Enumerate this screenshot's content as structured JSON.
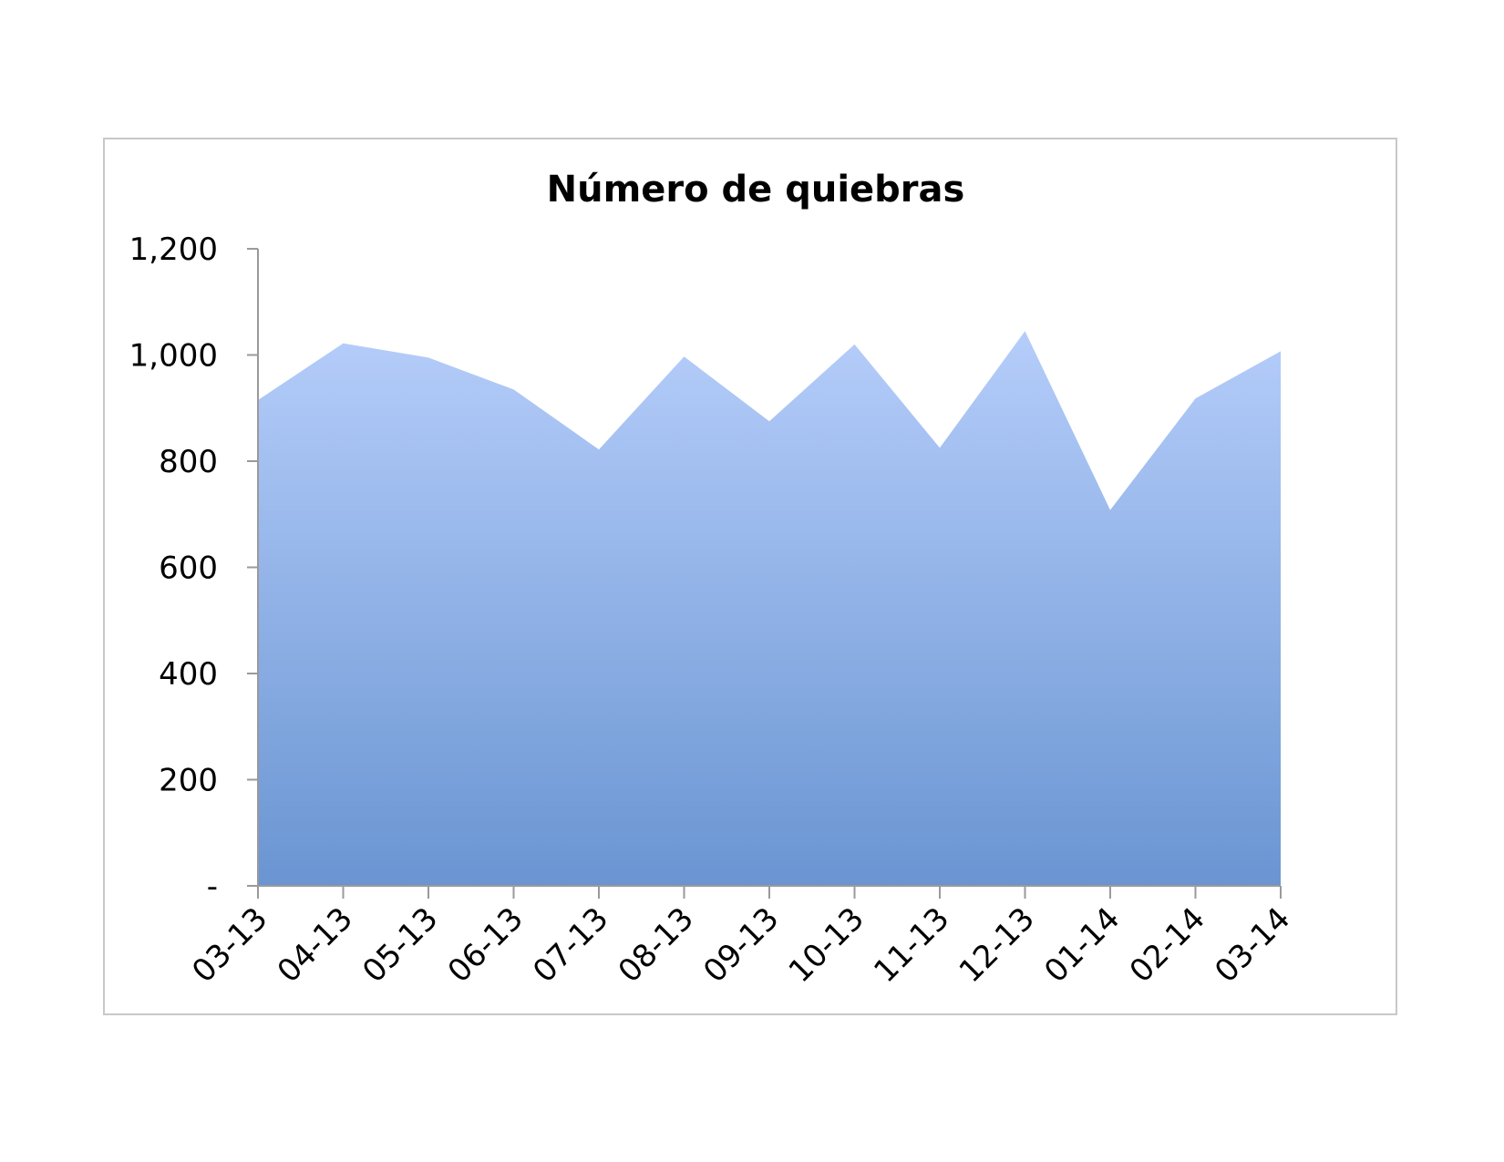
{
  "chart_data": {
    "type": "area",
    "title": "Número de quiebras",
    "xlabel": "",
    "ylabel": "",
    "categories": [
      "03-13",
      "04-13",
      "05-13",
      "06-13",
      "07-13",
      "08-13",
      "09-13",
      "10-13",
      "11-13",
      "12-13",
      "01-14",
      "02-14",
      "03-14"
    ],
    "series": [
      {
        "values": [
          915,
          1022,
          995,
          935,
          822,
          997,
          875,
          1020,
          825,
          1045,
          708,
          918,
          1007
        ]
      }
    ],
    "ylim": [
      0,
      1200
    ],
    "yticks": [
      0,
      200,
      400,
      600,
      800,
      1000,
      1200
    ],
    "ytick_labels": [
      "-",
      "200",
      "400",
      "600",
      "800",
      "1,000",
      "1,200"
    ],
    "grid": false,
    "legend": "none",
    "colors": {
      "fill_top": "#b5cdfa",
      "fill_bottom": "#6a95d2",
      "axis": "#9a9a9a",
      "frame": "#c8c8c8"
    }
  }
}
